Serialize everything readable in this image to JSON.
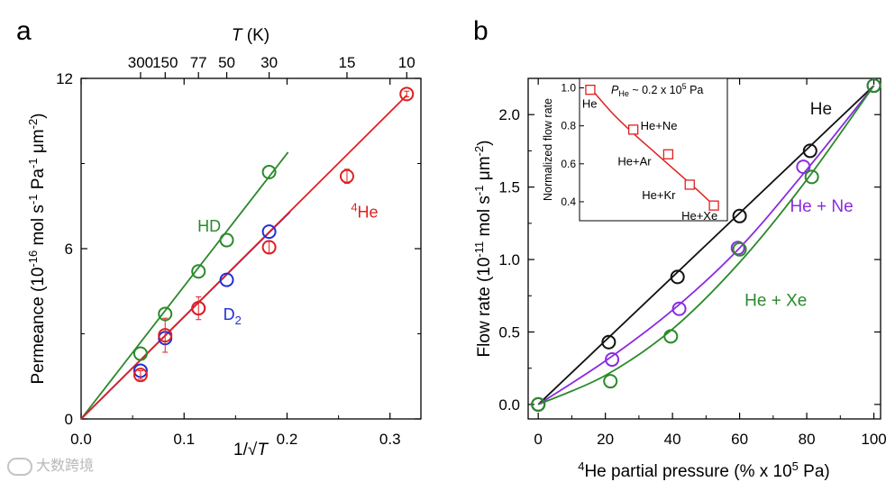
{
  "panels": {
    "a_label": "a",
    "b_label": "b"
  },
  "watermark": {
    "text": "大数跨境"
  },
  "chart_data": [
    {
      "panel": "a",
      "type": "scatter",
      "x_label_top": "T (K)",
      "x_label_top_text": "T",
      "x_label_top_unit": " (K)",
      "x_label_bottom": "1/√T",
      "x_label_bottom_prefix": "1/",
      "x_label_bottom_sqrt": "√",
      "x_label_bottom_var": "T",
      "y_label": "Permeance (10⁻¹⁶ mol s⁻¹ Pa⁻¹ μm⁻²)",
      "y_label_parts": {
        "a": "Permeance (10",
        "e1": "-16",
        "b": " mol s",
        "e2": "-1",
        "c": " Pa",
        "e3": "-1",
        "d": " μm",
        "e4": "-2",
        "f": ")"
      },
      "xlim": [
        0.0,
        0.33
      ],
      "ylim": [
        0,
        12
      ],
      "x_ticks": [
        0.0,
        0.1,
        0.2,
        0.3
      ],
      "x_tick_labels": [
        "0.0",
        "0.1",
        "0.2",
        "0.3"
      ],
      "y_ticks": [
        0,
        6,
        12
      ],
      "y_tick_labels": [
        "0",
        "6",
        "12"
      ],
      "top_ticks": {
        "T": [
          300,
          150,
          77,
          50,
          30,
          15,
          10
        ],
        "labels": [
          "300",
          "150",
          "77",
          "50",
          "30",
          "15",
          "10"
        ]
      },
      "series": [
        {
          "name": "HD",
          "label_text": "HD",
          "color": "#2a8a2a",
          "points": [
            {
              "x": 0.0577,
              "y": 2.3
            },
            {
              "x": 0.0816,
              "y": 3.7
            },
            {
              "x": 0.114,
              "y": 5.2
            },
            {
              "x": 0.1414,
              "y": 6.3
            },
            {
              "x": 0.1826,
              "y": 8.7
            }
          ],
          "fit": {
            "x0": 0.0,
            "y0": 0.0,
            "x1": 0.201,
            "y1": 9.4
          },
          "label_pos": {
            "x": 0.113,
            "y": 6.6
          }
        },
        {
          "name": "D2",
          "label_main": "D",
          "label_sub": "2",
          "color": "#1f2fd6",
          "points": [
            {
              "x": 0.0577,
              "y": 1.7
            },
            {
              "x": 0.0816,
              "y": 2.85
            },
            {
              "x": 0.114,
              "y": 3.9
            },
            {
              "x": 0.1414,
              "y": 4.9
            },
            {
              "x": 0.1826,
              "y": 6.6
            }
          ],
          "fit": {
            "x0": 0.0,
            "y0": 0.0,
            "x1": 0.203,
            "y1": 7.3
          },
          "label_pos": {
            "x": 0.138,
            "y": 3.5
          }
        },
        {
          "name": "4He",
          "label_sup": "4",
          "label_main": "He",
          "color": "#e02020",
          "points": [
            {
              "x": 0.0577,
              "y": 1.55,
              "err": 0.15
            },
            {
              "x": 0.0816,
              "y": 2.95,
              "err": 0.6
            },
            {
              "x": 0.114,
              "y": 3.9,
              "err": 0.4
            },
            {
              "x": 0.1826,
              "y": 6.05,
              "err": 0.2
            },
            {
              "x": 0.2582,
              "y": 8.55,
              "err": 0.25
            },
            {
              "x": 0.3162,
              "y": 11.45,
              "err": 0.1
            }
          ],
          "fit": {
            "x0": 0.0,
            "y0": 0.0,
            "x1": 0.3162,
            "y1": 11.4
          },
          "label_pos": {
            "x": 0.262,
            "y": 7.1
          }
        }
      ]
    },
    {
      "panel": "b",
      "type": "scatter",
      "x_label": "⁴He partial pressure (% x 10⁵ Pa)",
      "x_label_parts": {
        "sup1": "4",
        "a": "He partial pressure (% x 10",
        "sup2": "5",
        "b": " Pa)"
      },
      "y_label": "Flow rate (10⁻¹¹ mol s⁻¹ μm⁻²)",
      "y_label_parts": {
        "a": "Flow rate (10",
        "e1": "-11",
        "b": " mol s",
        "e2": "-1",
        "c": " μm",
        "e3": "-2",
        "d": ")"
      },
      "xlim": [
        -3,
        102
      ],
      "ylim": [
        -0.1,
        2.25
      ],
      "x_ticks": [
        0,
        20,
        40,
        60,
        80,
        100
      ],
      "x_tick_labels": [
        "0",
        "20",
        "40",
        "60",
        "80",
        "100"
      ],
      "y_ticks": [
        0.0,
        0.5,
        1.0,
        1.5,
        2.0
      ],
      "y_tick_labels": [
        "0.0",
        "0.5",
        "1.0",
        "1.5",
        "2.0"
      ],
      "series": [
        {
          "name": "He",
          "label_text": "He",
          "color": "#111111",
          "points": [
            {
              "x": 0,
              "y": 0.0
            },
            {
              "x": 21,
              "y": 0.43
            },
            {
              "x": 41.5,
              "y": 0.88
            },
            {
              "x": 60,
              "y": 1.3
            },
            {
              "x": 81,
              "y": 1.75
            },
            {
              "x": 100,
              "y": 2.2
            }
          ],
          "fit": [
            [
              0,
              0.0
            ],
            [
              100,
              2.2
            ]
          ],
          "label_pos": {
            "x": 81,
            "y": 2.0
          }
        },
        {
          "name": "He + Ne",
          "label_text": "He + Ne",
          "color": "#8a2be2",
          "points": [
            {
              "x": 0,
              "y": 0.0
            },
            {
              "x": 22,
              "y": 0.31
            },
            {
              "x": 42,
              "y": 0.66
            },
            {
              "x": 59.5,
              "y": 1.08
            },
            {
              "x": 79,
              "y": 1.64
            },
            {
              "x": 100,
              "y": 2.2
            }
          ],
          "fit": [
            [
              0,
              0.0
            ],
            [
              20,
              0.3
            ],
            [
              40,
              0.65
            ],
            [
              60,
              1.08
            ],
            [
              80,
              1.62
            ],
            [
              100,
              2.2
            ]
          ],
          "label_pos": {
            "x": 75,
            "y": 1.33
          }
        },
        {
          "name": "He + Xe",
          "label_text": "He + Xe",
          "color": "#2a8a2a",
          "points": [
            {
              "x": 0,
              "y": 0.0
            },
            {
              "x": 21.5,
              "y": 0.16
            },
            {
              "x": 39.5,
              "y": 0.47
            },
            {
              "x": 60,
              "y": 1.07
            },
            {
              "x": 81.5,
              "y": 1.57
            },
            {
              "x": 100,
              "y": 2.2
            }
          ],
          "fit": [
            [
              0,
              0.0
            ],
            [
              20,
              0.2
            ],
            [
              40,
              0.52
            ],
            [
              60,
              0.98
            ],
            [
              80,
              1.55
            ],
            [
              100,
              2.2
            ]
          ],
          "label_pos": {
            "x": 61.5,
            "y": 0.68
          }
        }
      ],
      "inset": {
        "y_label": "Normalized flow rate",
        "ylim": [
          0.3,
          1.05
        ],
        "y_ticks": [
          0.4,
          0.6,
          0.8,
          1.0
        ],
        "y_tick_labels": [
          "0.4",
          "0.6",
          "0.8",
          "1.0"
        ],
        "annotation_parts": {
          "P": "P",
          "sub": "He",
          "rest": " ~ 0.2 x 10",
          "sup": "5",
          "unit": " Pa"
        },
        "color": "#e02020",
        "points": [
          {
            "label": "He",
            "x": 4,
            "y": 0.99
          },
          {
            "label": "He+Ne",
            "x": 20,
            "y": 0.78
          },
          {
            "label": "He+Ar",
            "x": 33,
            "y": 0.65
          },
          {
            "label": "He+Kr",
            "x": 41,
            "y": 0.49
          },
          {
            "label": "He+Xe",
            "x": 50,
            "y": 0.38
          }
        ],
        "fit": [
          [
            4,
            1.0
          ],
          [
            12,
            0.87
          ],
          [
            20,
            0.76
          ],
          [
            28,
            0.66
          ],
          [
            36,
            0.56
          ],
          [
            44,
            0.46
          ],
          [
            50,
            0.38
          ]
        ]
      }
    }
  ]
}
